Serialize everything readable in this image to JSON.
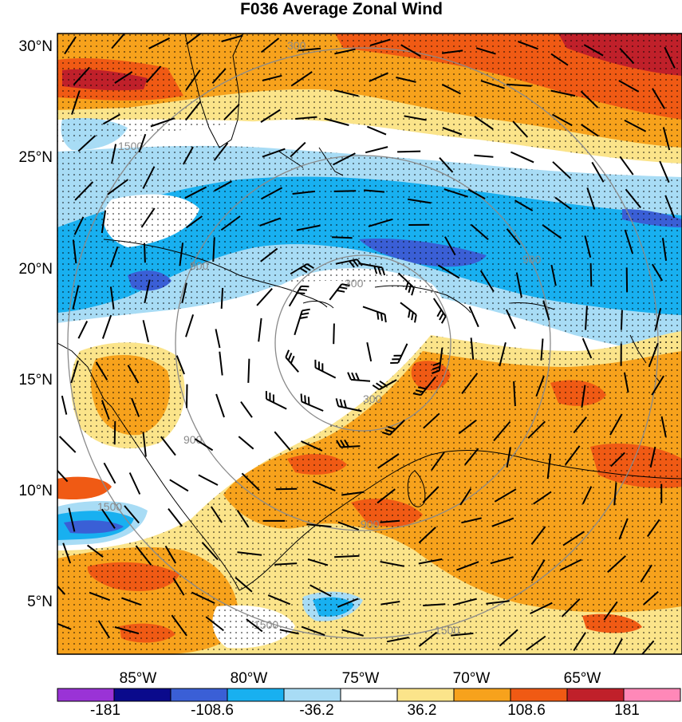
{
  "title": "F036 Average Zonal Wind",
  "lat_labels": [
    "30°N",
    "25°N",
    "20°N",
    "15°N",
    "10°N",
    "5°N"
  ],
  "lon_labels": [
    "85°W",
    "80°W",
    "75°W",
    "70°W",
    "65°W"
  ],
  "colorbar": {
    "tick_labels": [
      "-181",
      "-108.6",
      "-36.2",
      "36.2",
      "108.6",
      "181"
    ],
    "colors": [
      "#9a33d6",
      "#0a0a8c",
      "#3a5fd6",
      "#18b0f0",
      "#a8dcf5",
      "#ffffff",
      "#fbe48a",
      "#f7a21c",
      "#f05a14",
      "#c0202a",
      "#ff88b8"
    ]
  },
  "range_rings": {
    "labels": [
      "300",
      "900",
      "1500",
      "300",
      "900",
      "1500",
      "1500",
      "900",
      "1500",
      "900",
      "300"
    ]
  },
  "field_colors": {
    "strong_east": "#c0202a",
    "east_high": "#f05a14",
    "east_mid": "#f7a21c",
    "east_low": "#fbe48a",
    "calm": "#ffffff",
    "west_low": "#a8dcf5",
    "west_mid": "#18b0f0",
    "west_high": "#3a5fd6"
  }
}
